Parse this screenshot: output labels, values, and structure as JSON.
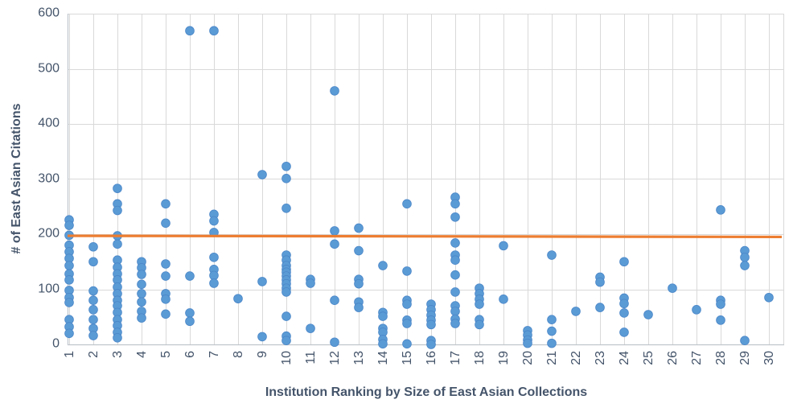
{
  "chart_data": {
    "type": "scatter",
    "title": "",
    "xlabel": "Institution Ranking by Size of East Asian Collections",
    "ylabel": "# of East Asian Citations",
    "xlim": [
      1,
      30
    ],
    "ylim": [
      0,
      600
    ],
    "grid": true,
    "legend": "none",
    "y_ticks": [
      0,
      100,
      200,
      300,
      400,
      500,
      600
    ],
    "x_ticks": [
      1,
      2,
      3,
      4,
      5,
      6,
      7,
      8,
      9,
      10,
      11,
      12,
      13,
      14,
      15,
      16,
      17,
      18,
      19,
      20,
      21,
      22,
      23,
      24,
      25,
      26,
      27,
      28,
      29,
      30
    ],
    "marker_color": "#5B9BD5",
    "marker_edge_color": "#4A86C8",
    "gridline_color": "#D9D9D9",
    "axis_line_color": "#BFC5CC",
    "text_color": "#44546A",
    "trendline": {
      "color": "#ED7D31",
      "y_start": 197,
      "y_end": 195
    },
    "series": [
      {
        "name": "East Asian Citations",
        "points": [
          [
            1,
            226
          ],
          [
            1,
            216
          ],
          [
            1,
            198
          ],
          [
            1,
            180
          ],
          [
            1,
            168
          ],
          [
            1,
            156
          ],
          [
            1,
            143
          ],
          [
            1,
            128
          ],
          [
            1,
            117
          ],
          [
            1,
            98
          ],
          [
            1,
            85
          ],
          [
            1,
            76
          ],
          [
            1,
            45
          ],
          [
            1,
            32
          ],
          [
            1,
            20
          ],
          [
            2,
            177
          ],
          [
            2,
            150
          ],
          [
            2,
            97
          ],
          [
            2,
            80
          ],
          [
            2,
            63
          ],
          [
            2,
            45
          ],
          [
            2,
            29
          ],
          [
            2,
            16
          ],
          [
            3,
            283
          ],
          [
            3,
            255
          ],
          [
            3,
            243
          ],
          [
            3,
            197
          ],
          [
            3,
            182
          ],
          [
            3,
            153
          ],
          [
            3,
            140
          ],
          [
            3,
            128
          ],
          [
            3,
            117
          ],
          [
            3,
            104
          ],
          [
            3,
            92
          ],
          [
            3,
            80
          ],
          [
            3,
            70
          ],
          [
            3,
            58
          ],
          [
            3,
            45
          ],
          [
            3,
            34
          ],
          [
            3,
            22
          ],
          [
            3,
            12
          ],
          [
            4,
            150
          ],
          [
            4,
            139
          ],
          [
            4,
            127
          ],
          [
            4,
            109
          ],
          [
            4,
            92
          ],
          [
            4,
            77
          ],
          [
            4,
            60
          ],
          [
            4,
            48
          ],
          [
            5,
            255
          ],
          [
            5,
            220
          ],
          [
            5,
            146
          ],
          [
            5,
            124
          ],
          [
            5,
            92
          ],
          [
            5,
            82
          ],
          [
            5,
            55
          ],
          [
            6,
            569
          ],
          [
            6,
            124
          ],
          [
            6,
            57
          ],
          [
            6,
            42
          ],
          [
            7,
            569
          ],
          [
            7,
            236
          ],
          [
            7,
            224
          ],
          [
            7,
            203
          ],
          [
            7,
            158
          ],
          [
            7,
            136
          ],
          [
            7,
            125
          ],
          [
            7,
            111
          ],
          [
            8,
            83
          ],
          [
            9,
            308
          ],
          [
            9,
            114
          ],
          [
            9,
            14
          ],
          [
            10,
            323
          ],
          [
            10,
            301
          ],
          [
            10,
            247
          ],
          [
            10,
            162
          ],
          [
            10,
            153
          ],
          [
            10,
            143
          ],
          [
            10,
            136
          ],
          [
            10,
            131
          ],
          [
            10,
            124
          ],
          [
            10,
            117
          ],
          [
            10,
            110
          ],
          [
            10,
            102
          ],
          [
            10,
            95
          ],
          [
            10,
            51
          ],
          [
            10,
            15
          ],
          [
            10,
            7
          ],
          [
            11,
            118
          ],
          [
            11,
            111
          ],
          [
            11,
            29
          ],
          [
            12,
            460
          ],
          [
            12,
            206
          ],
          [
            12,
            182
          ],
          [
            12,
            80
          ],
          [
            12,
            4
          ],
          [
            13,
            211
          ],
          [
            13,
            170
          ],
          [
            13,
            118
          ],
          [
            13,
            110
          ],
          [
            13,
            77
          ],
          [
            13,
            67
          ],
          [
            14,
            143
          ],
          [
            14,
            58
          ],
          [
            14,
            51
          ],
          [
            14,
            29
          ],
          [
            14,
            22
          ],
          [
            14,
            9
          ],
          [
            14,
            1
          ],
          [
            15,
            255
          ],
          [
            15,
            133
          ],
          [
            15,
            80
          ],
          [
            15,
            73
          ],
          [
            15,
            44
          ],
          [
            15,
            38
          ],
          [
            15,
            1
          ],
          [
            16,
            73
          ],
          [
            16,
            63
          ],
          [
            16,
            53
          ],
          [
            16,
            44
          ],
          [
            16,
            36
          ],
          [
            16,
            7
          ],
          [
            16,
            0
          ],
          [
            17,
            267
          ],
          [
            17,
            255
          ],
          [
            17,
            231
          ],
          [
            17,
            184
          ],
          [
            17,
            162
          ],
          [
            17,
            153
          ],
          [
            17,
            126
          ],
          [
            17,
            95
          ],
          [
            17,
            70
          ],
          [
            17,
            60
          ],
          [
            17,
            46
          ],
          [
            17,
            38
          ],
          [
            18,
            102
          ],
          [
            18,
            92
          ],
          [
            18,
            82
          ],
          [
            18,
            73
          ],
          [
            18,
            45
          ],
          [
            18,
            36
          ],
          [
            19,
            179
          ],
          [
            19,
            82
          ],
          [
            20,
            25
          ],
          [
            20,
            17
          ],
          [
            20,
            8
          ],
          [
            20,
            2
          ],
          [
            21,
            162
          ],
          [
            21,
            45
          ],
          [
            21,
            24
          ],
          [
            21,
            2
          ],
          [
            22,
            60
          ],
          [
            23,
            122
          ],
          [
            23,
            113
          ],
          [
            23,
            67
          ],
          [
            24,
            150
          ],
          [
            24,
            84
          ],
          [
            24,
            74
          ],
          [
            24,
            57
          ],
          [
            24,
            22
          ],
          [
            25,
            54
          ],
          [
            26,
            102
          ],
          [
            27,
            63
          ],
          [
            28,
            244
          ],
          [
            28,
            80
          ],
          [
            28,
            73
          ],
          [
            28,
            44
          ],
          [
            29,
            170
          ],
          [
            29,
            158
          ],
          [
            29,
            143
          ],
          [
            29,
            7
          ],
          [
            30,
            85
          ]
        ]
      }
    ]
  }
}
